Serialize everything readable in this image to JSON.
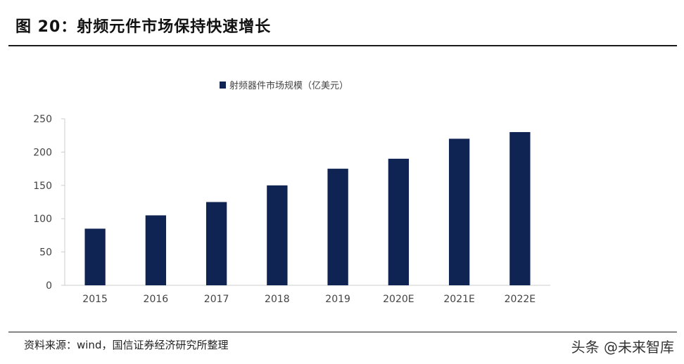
{
  "header": {
    "title": "图 20：射频元件市场保持快速增长"
  },
  "footer": {
    "source": "资料来源：wind，国信证券经济研究所整理",
    "watermark": "头条 @未来智库"
  },
  "colors": {
    "bar": "#0f2452",
    "axis": "#cccccc",
    "text": "#444444"
  },
  "chart_data": {
    "type": "bar",
    "categories": [
      "2015",
      "2016",
      "2017",
      "2018",
      "2019",
      "2020E",
      "2021E",
      "2022E"
    ],
    "series": [
      {
        "name": "射频器件市场规模（亿美元）",
        "values": [
          85,
          105,
          125,
          150,
          175,
          190,
          220,
          230
        ]
      }
    ],
    "ylim": [
      0,
      250
    ],
    "yticks": [
      0,
      50,
      100,
      150,
      200,
      250
    ],
    "legend": "top-center",
    "grid": false
  }
}
